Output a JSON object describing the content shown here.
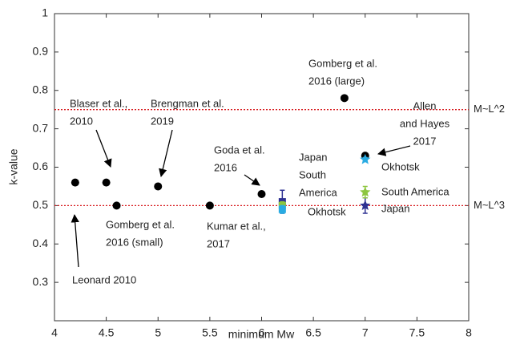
{
  "chart_data": {
    "type": "scatter",
    "xlabel": "minimum Mw",
    "ylabel": "k-value",
    "xlim": [
      4,
      8
    ],
    "ylim": [
      0.2,
      1
    ],
    "xticks": [
      4,
      4.5,
      5,
      5.5,
      6,
      6.5,
      7,
      7.5,
      8
    ],
    "yticks": [
      0.3,
      0.4,
      0.5,
      0.6,
      0.7,
      0.8,
      0.9,
      1
    ],
    "grid": false,
    "series": [
      {
        "color": "#000000",
        "markers": [
          "circle",
          "circle",
          "circle",
          "circle",
          "circle",
          "circle",
          "circle",
          "circle"
        ],
        "x": [
          4.2,
          4.5,
          4.6,
          5,
          5.5,
          6,
          6.8,
          7
        ],
        "values": [
          0.56,
          0.56,
          0.5,
          0.55,
          0.5,
          0.53,
          0.78,
          0.63
        ]
      },
      {
        "color": "#2e3192",
        "markers": [
          "square",
          "star"
        ],
        "x": [
          6.2,
          7
        ],
        "values": [
          0.51,
          0.5
        ],
        "errors": [
          0.03,
          0.02
        ]
      },
      {
        "color": "#8dc63f",
        "markers": [
          "square",
          "star"
        ],
        "x": [
          6.2,
          7
        ],
        "values": [
          0.5,
          0.535
        ],
        "errors": [
          0.01,
          0.015
        ]
      },
      {
        "color": "#29abe2",
        "markers": [
          "square",
          "star"
        ],
        "x": [
          6.2,
          7
        ],
        "values": [
          0.49,
          0.62
        ],
        "errors": [
          0.01,
          0.005
        ]
      }
    ],
    "reference_lines": [
      {
        "value": 0.75,
        "label": "M~L^2",
        "color": "#d7191c"
      },
      {
        "value": 0.5,
        "label": "M~L^3",
        "color": "#d7191c"
      }
    ],
    "annotations": [
      {
        "lines": [
          "Gomberg et al.",
          "2016 (large)"
        ]
      },
      {
        "lines": [
          "Blaser et al.,",
          "2010"
        ]
      },
      {
        "lines": [
          "Brengman et al.",
          "2019"
        ]
      },
      {
        "lines": [
          "Allen",
          "and Hayes",
          "2017"
        ]
      },
      {
        "lines": [
          "Goda et al.",
          "2016"
        ]
      },
      {
        "lines": [
          "Japan",
          "South",
          "America"
        ]
      },
      {
        "lines": [
          "Okhotsk"
        ]
      },
      {
        "lines": [
          "Okhotsk"
        ]
      },
      {
        "lines": [
          "South America"
        ]
      },
      {
        "lines": [
          "Japan"
        ]
      },
      {
        "lines": [
          "Gomberg et al.",
          "2016 (small)"
        ]
      },
      {
        "lines": [
          "Kumar et al.,",
          "2017"
        ]
      },
      {
        "lines": [
          "Leonard 2010"
        ]
      }
    ]
  }
}
